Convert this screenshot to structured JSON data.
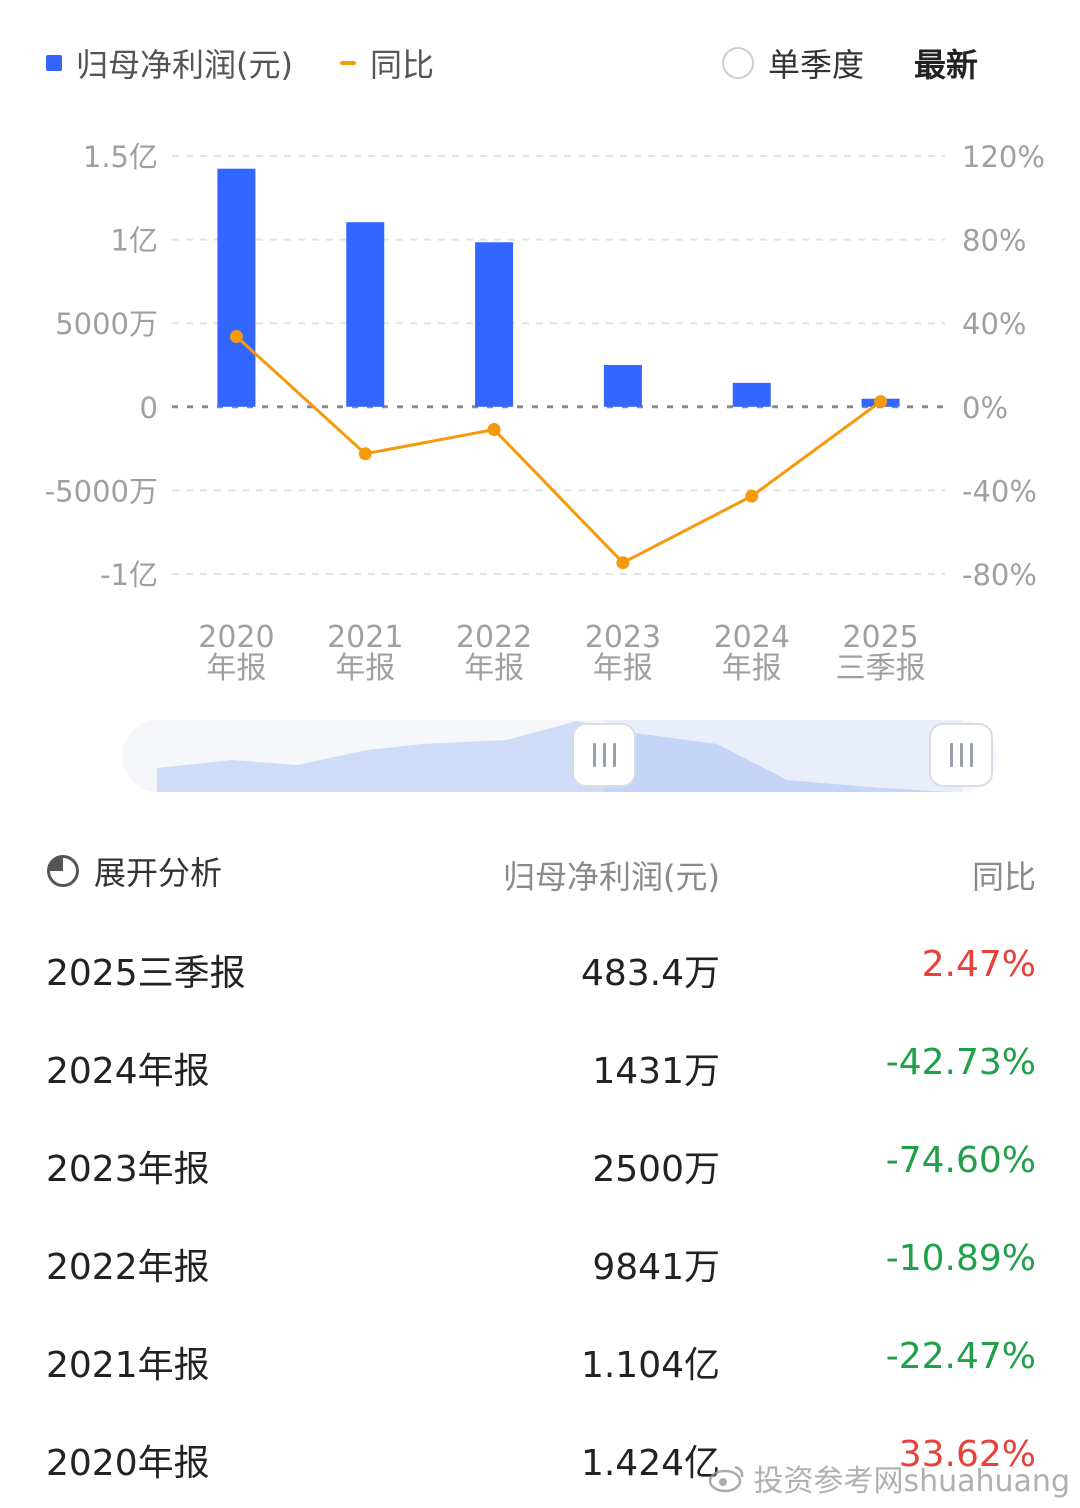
{
  "legend": {
    "profit_label": "归母净利润(元)",
    "yoy_label": "同比",
    "profit_color": "#3366ff",
    "yoy_color": "#f59a0c"
  },
  "controls": {
    "quarter_toggle_label": "单季度",
    "quarter_toggle_checked": false,
    "latest_label": "最新"
  },
  "chart_data": {
    "type": "bar",
    "categories": [
      [
        "2020",
        "年报"
      ],
      [
        "2021",
        "年报"
      ],
      [
        "2022",
        "年报"
      ],
      [
        "2023",
        "年报"
      ],
      [
        "2024",
        "年报"
      ],
      [
        "2025",
        "三季报"
      ]
    ],
    "series": [
      {
        "name": "归母净利润(元)",
        "type": "bar",
        "axis": "left",
        "values": [
          142400000,
          110400000,
          98410000,
          25000000,
          14310000,
          4834000
        ],
        "color": "#3366ff"
      },
      {
        "name": "同比",
        "type": "line",
        "axis": "right",
        "values": [
          33.62,
          -22.47,
          -10.89,
          -74.6,
          -42.73,
          2.47
        ],
        "color": "#f59a0c"
      }
    ],
    "left_axis": {
      "ticks": [
        150000000,
        100000000,
        50000000,
        0,
        -50000000,
        -100000000
      ],
      "tick_labels": [
        "1.5亿",
        "1亿",
        "5000万",
        "0",
        "-5000万",
        "-1亿"
      ],
      "ylim": [
        -100000000,
        150000000
      ]
    },
    "right_axis": {
      "ticks": [
        120,
        80,
        40,
        0,
        -40,
        -80
      ],
      "tick_labels": [
        "120%",
        "80%",
        "40%",
        "0%",
        "-40%",
        "-80%"
      ],
      "ylim": [
        -80,
        120
      ]
    },
    "grid": true,
    "legend": "top-left"
  },
  "slider": {
    "range_start": 0.55,
    "range_end": 1.0
  },
  "table": {
    "expand_label": "展开分析",
    "header_value": "归母净利润(元)",
    "header_yoy": "同比",
    "rows": [
      {
        "period": "2025三季报",
        "value": "483.4万",
        "yoy": "2.47%",
        "trend": "up"
      },
      {
        "period": "2024年报",
        "value": "1431万",
        "yoy": "-42.73%",
        "trend": "down"
      },
      {
        "period": "2023年报",
        "value": "2500万",
        "yoy": "-74.60%",
        "trend": "down"
      },
      {
        "period": "2022年报",
        "value": "9841万",
        "yoy": "-10.89%",
        "trend": "down"
      },
      {
        "period": "2021年报",
        "value": "1.104亿",
        "yoy": "-22.47%",
        "trend": "down"
      },
      {
        "period": "2020年报",
        "value": "1.424亿",
        "yoy": "33.62%",
        "trend": "up"
      }
    ]
  },
  "watermark": "投资参考网shuahuang"
}
